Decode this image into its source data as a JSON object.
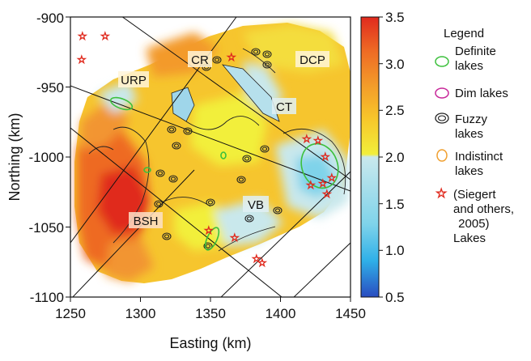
{
  "map": {
    "axes": {
      "x_label": "Easting (km)",
      "y_label": "Northing (km)",
      "x_range": [
        1250,
        1450
      ],
      "y_range": [
        -1100,
        -900
      ],
      "x_ticks": [
        "1250",
        "1300",
        "1350",
        "1400",
        "1450"
      ],
      "y_ticks": [
        "-900",
        "-950",
        "-1000",
        "-1050",
        "-1100"
      ]
    },
    "colorbar": {
      "ticks": [
        "3.5",
        "3.0",
        "2.5",
        "2.0",
        "1.5",
        "1.0",
        "0.5"
      ],
      "range": [
        0.5,
        3.5
      ],
      "colors": [
        "#2a4cc0",
        "#2fb0e8",
        "#7fd3ea",
        "#c9e8ec",
        "#f2ef3a",
        "#f7c52a",
        "#f39a2a",
        "#ee6a24",
        "#e02a1e"
      ]
    },
    "region_labels": {
      "urp": "URP",
      "cr": "CR",
      "dcp": "DCP",
      "ct": "CT",
      "vb": "VB",
      "bsh": "BSH"
    },
    "legend": {
      "title": "Legend",
      "items": [
        {
          "label_lines": [
            "Definite",
            "lakes"
          ],
          "color": "#3cc03c",
          "symbol": "ellipse"
        },
        {
          "label_lines": [
            "Dim lakes"
          ],
          "color": "#c8289a",
          "symbol": "ellipse"
        },
        {
          "label_lines": [
            "Fuzzy",
            "lakes"
          ],
          "color": "#222222",
          "symbol": "double-ellipse"
        },
        {
          "label_lines": [
            "Indistinct",
            "lakes"
          ],
          "color": "#f0a030",
          "symbol": "ellipse"
        },
        {
          "label_lines": [
            "(Siegert",
            "and others,",
            " 2005)",
            "Lakes"
          ],
          "color": "#e02a1e",
          "symbol": "star"
        }
      ]
    }
  }
}
